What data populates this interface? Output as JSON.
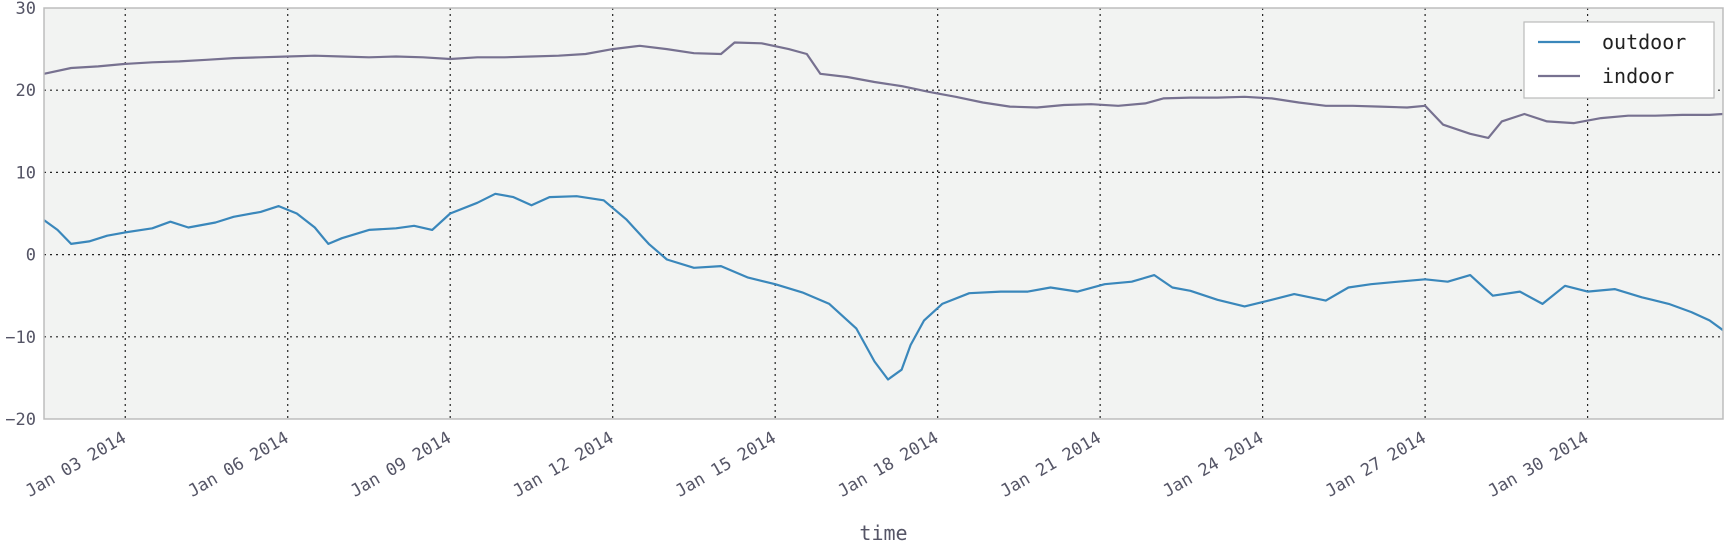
{
  "chart_data": {
    "type": "line",
    "title": "",
    "xlabel": "time",
    "ylabel": "",
    "ylim": [
      -20,
      30
    ],
    "yticks": [
      -20,
      -10,
      0,
      10,
      20,
      30
    ],
    "xlim": [
      "2014-01-01T12:00",
      "2014-02-01T12:00"
    ],
    "xticks": [
      {
        "date": "2014-01-03",
        "label": "Jan 03 2014"
      },
      {
        "date": "2014-01-06",
        "label": "Jan 06 2014"
      },
      {
        "date": "2014-01-09",
        "label": "Jan 09 2014"
      },
      {
        "date": "2014-01-12",
        "label": "Jan 12 2014"
      },
      {
        "date": "2014-01-15",
        "label": "Jan 15 2014"
      },
      {
        "date": "2014-01-18",
        "label": "Jan 18 2014"
      },
      {
        "date": "2014-01-21",
        "label": "Jan 21 2014"
      },
      {
        "date": "2014-01-24",
        "label": "Jan 24 2014"
      },
      {
        "date": "2014-01-27",
        "label": "Jan 27 2014"
      },
      {
        "date": "2014-01-30",
        "label": "Jan 30 2014"
      }
    ],
    "grid": true,
    "legend": "top-right",
    "background": "#f2f3f2",
    "series": [
      {
        "name": "outdoor",
        "color": "#3a87bb",
        "points": [
          [
            "2014-01-01T12:00",
            4.2
          ],
          [
            "2014-01-01T18:00",
            3.0
          ],
          [
            "2014-01-02T00:00",
            1.3
          ],
          [
            "2014-01-02T08:00",
            1.6
          ],
          [
            "2014-01-02T16:00",
            2.3
          ],
          [
            "2014-01-03T00:00",
            2.7
          ],
          [
            "2014-01-03T12:00",
            3.2
          ],
          [
            "2014-01-03T20:00",
            4.0
          ],
          [
            "2014-01-04T04:00",
            3.3
          ],
          [
            "2014-01-04T16:00",
            3.9
          ],
          [
            "2014-01-05T00:00",
            4.6
          ],
          [
            "2014-01-05T12:00",
            5.2
          ],
          [
            "2014-01-05T20:00",
            5.9
          ],
          [
            "2014-01-06T04:00",
            5.0
          ],
          [
            "2014-01-06T12:00",
            3.3
          ],
          [
            "2014-01-06T18:00",
            1.3
          ],
          [
            "2014-01-07T00:00",
            2.0
          ],
          [
            "2014-01-07T12:00",
            3.0
          ],
          [
            "2014-01-08T00:00",
            3.2
          ],
          [
            "2014-01-08T08:00",
            3.5
          ],
          [
            "2014-01-08T16:00",
            3.0
          ],
          [
            "2014-01-09T00:00",
            5.0
          ],
          [
            "2014-01-09T12:00",
            6.3
          ],
          [
            "2014-01-09T20:00",
            7.4
          ],
          [
            "2014-01-10T04:00",
            7.0
          ],
          [
            "2014-01-10T12:00",
            6.0
          ],
          [
            "2014-01-10T20:00",
            7.0
          ],
          [
            "2014-01-11T08:00",
            7.1
          ],
          [
            "2014-01-11T20:00",
            6.6
          ],
          [
            "2014-01-12T06:00",
            4.3
          ],
          [
            "2014-01-12T16:00",
            1.3
          ],
          [
            "2014-01-13T00:00",
            -0.6
          ],
          [
            "2014-01-13T12:00",
            -1.6
          ],
          [
            "2014-01-14T00:00",
            -1.4
          ],
          [
            "2014-01-14T12:00",
            -2.8
          ],
          [
            "2014-01-15T00:00",
            -3.6
          ],
          [
            "2014-01-15T12:00",
            -4.6
          ],
          [
            "2014-01-16T00:00",
            -6.0
          ],
          [
            "2014-01-16T12:00",
            -9.0
          ],
          [
            "2014-01-16T20:00",
            -13.0
          ],
          [
            "2014-01-17T02:00",
            -15.2
          ],
          [
            "2014-01-17T08:00",
            -14.0
          ],
          [
            "2014-01-17T12:00",
            -11.0
          ],
          [
            "2014-01-17T18:00",
            -8.0
          ],
          [
            "2014-01-18T02:00",
            -6.0
          ],
          [
            "2014-01-18T14:00",
            -4.7
          ],
          [
            "2014-01-19T04:00",
            -4.5
          ],
          [
            "2014-01-19T16:00",
            -4.5
          ],
          [
            "2014-01-20T02:00",
            -4.0
          ],
          [
            "2014-01-20T14:00",
            -4.5
          ],
          [
            "2014-01-21T02:00",
            -3.6
          ],
          [
            "2014-01-21T14:00",
            -3.3
          ],
          [
            "2014-01-22T00:00",
            -2.5
          ],
          [
            "2014-01-22T08:00",
            -4.0
          ],
          [
            "2014-01-22T16:00",
            -4.4
          ],
          [
            "2014-01-23T04:00",
            -5.5
          ],
          [
            "2014-01-23T16:00",
            -6.3
          ],
          [
            "2014-01-24T04:00",
            -5.5
          ],
          [
            "2014-01-24T14:00",
            -4.8
          ],
          [
            "2014-01-25T04:00",
            -5.6
          ],
          [
            "2014-01-25T14:00",
            -4.0
          ],
          [
            "2014-01-26T00:00",
            -3.6
          ],
          [
            "2014-01-26T12:00",
            -3.3
          ],
          [
            "2014-01-27T00:00",
            -3.0
          ],
          [
            "2014-01-27T10:00",
            -3.3
          ],
          [
            "2014-01-27T20:00",
            -2.5
          ],
          [
            "2014-01-28T06:00",
            -5.0
          ],
          [
            "2014-01-28T18:00",
            -4.5
          ],
          [
            "2014-01-29T04:00",
            -6.0
          ],
          [
            "2014-01-29T14:00",
            -3.8
          ],
          [
            "2014-01-30T00:00",
            -4.5
          ],
          [
            "2014-01-30T12:00",
            -4.2
          ],
          [
            "2014-01-31T00:00",
            -5.2
          ],
          [
            "2014-01-31T12:00",
            -6.0
          ],
          [
            "2014-01-31T22:00",
            -7.0
          ],
          [
            "2014-02-01T06:00",
            -8.0
          ],
          [
            "2014-02-01T12:00",
            -9.2
          ]
        ]
      },
      {
        "name": "indoor",
        "color": "#777190",
        "points": [
          [
            "2014-01-01T12:00",
            22.0
          ],
          [
            "2014-01-02T00:00",
            22.7
          ],
          [
            "2014-01-02T12:00",
            22.9
          ],
          [
            "2014-01-03T00:00",
            23.2
          ],
          [
            "2014-01-03T12:00",
            23.4
          ],
          [
            "2014-01-04T00:00",
            23.5
          ],
          [
            "2014-01-04T12:00",
            23.7
          ],
          [
            "2014-01-05T00:00",
            23.9
          ],
          [
            "2014-01-05T12:00",
            24.0
          ],
          [
            "2014-01-06T00:00",
            24.1
          ],
          [
            "2014-01-06T12:00",
            24.2
          ],
          [
            "2014-01-07T00:00",
            24.1
          ],
          [
            "2014-01-07T12:00",
            24.0
          ],
          [
            "2014-01-08T00:00",
            24.1
          ],
          [
            "2014-01-08T12:00",
            24.0
          ],
          [
            "2014-01-09T00:00",
            23.8
          ],
          [
            "2014-01-09T12:00",
            24.0
          ],
          [
            "2014-01-10T00:00",
            24.0
          ],
          [
            "2014-01-10T12:00",
            24.1
          ],
          [
            "2014-01-11T00:00",
            24.2
          ],
          [
            "2014-01-11T12:00",
            24.4
          ],
          [
            "2014-01-12T00:00",
            25.0
          ],
          [
            "2014-01-12T12:00",
            25.4
          ],
          [
            "2014-01-13T00:00",
            25.0
          ],
          [
            "2014-01-13T12:00",
            24.5
          ],
          [
            "2014-01-14T00:00",
            24.4
          ],
          [
            "2014-01-14T06:00",
            25.8
          ],
          [
            "2014-01-14T18:00",
            25.7
          ],
          [
            "2014-01-15T06:00",
            25.0
          ],
          [
            "2014-01-15T14:00",
            24.4
          ],
          [
            "2014-01-15T20:00",
            22.0
          ],
          [
            "2014-01-16T08:00",
            21.6
          ],
          [
            "2014-01-16T20:00",
            21.0
          ],
          [
            "2014-01-17T08:00",
            20.5
          ],
          [
            "2014-01-17T20:00",
            19.8
          ],
          [
            "2014-01-18T08:00",
            19.2
          ],
          [
            "2014-01-18T20:00",
            18.5
          ],
          [
            "2014-01-19T08:00",
            18.0
          ],
          [
            "2014-01-19T20:00",
            17.9
          ],
          [
            "2014-01-20T08:00",
            18.2
          ],
          [
            "2014-01-20T20:00",
            18.3
          ],
          [
            "2014-01-21T08:00",
            18.1
          ],
          [
            "2014-01-21T20:00",
            18.4
          ],
          [
            "2014-01-22T04:00",
            19.0
          ],
          [
            "2014-01-22T16:00",
            19.1
          ],
          [
            "2014-01-23T04:00",
            19.1
          ],
          [
            "2014-01-23T16:00",
            19.2
          ],
          [
            "2014-01-24T04:00",
            19.0
          ],
          [
            "2014-01-24T16:00",
            18.5
          ],
          [
            "2014-01-25T04:00",
            18.1
          ],
          [
            "2014-01-25T16:00",
            18.1
          ],
          [
            "2014-01-26T04:00",
            18.0
          ],
          [
            "2014-01-26T16:00",
            17.9
          ],
          [
            "2014-01-27T00:00",
            18.1
          ],
          [
            "2014-01-27T08:00",
            15.8
          ],
          [
            "2014-01-27T20:00",
            14.7
          ],
          [
            "2014-01-28T04:00",
            14.2
          ],
          [
            "2014-01-28T10:00",
            16.2
          ],
          [
            "2014-01-28T20:00",
            17.1
          ],
          [
            "2014-01-29T06:00",
            16.2
          ],
          [
            "2014-01-29T18:00",
            16.0
          ],
          [
            "2014-01-30T06:00",
            16.6
          ],
          [
            "2014-01-30T18:00",
            16.9
          ],
          [
            "2014-01-31T06:00",
            16.9
          ],
          [
            "2014-01-31T18:00",
            17.0
          ],
          [
            "2014-02-01T06:00",
            17.0
          ],
          [
            "2014-02-01T12:00",
            17.1
          ]
        ]
      }
    ]
  }
}
